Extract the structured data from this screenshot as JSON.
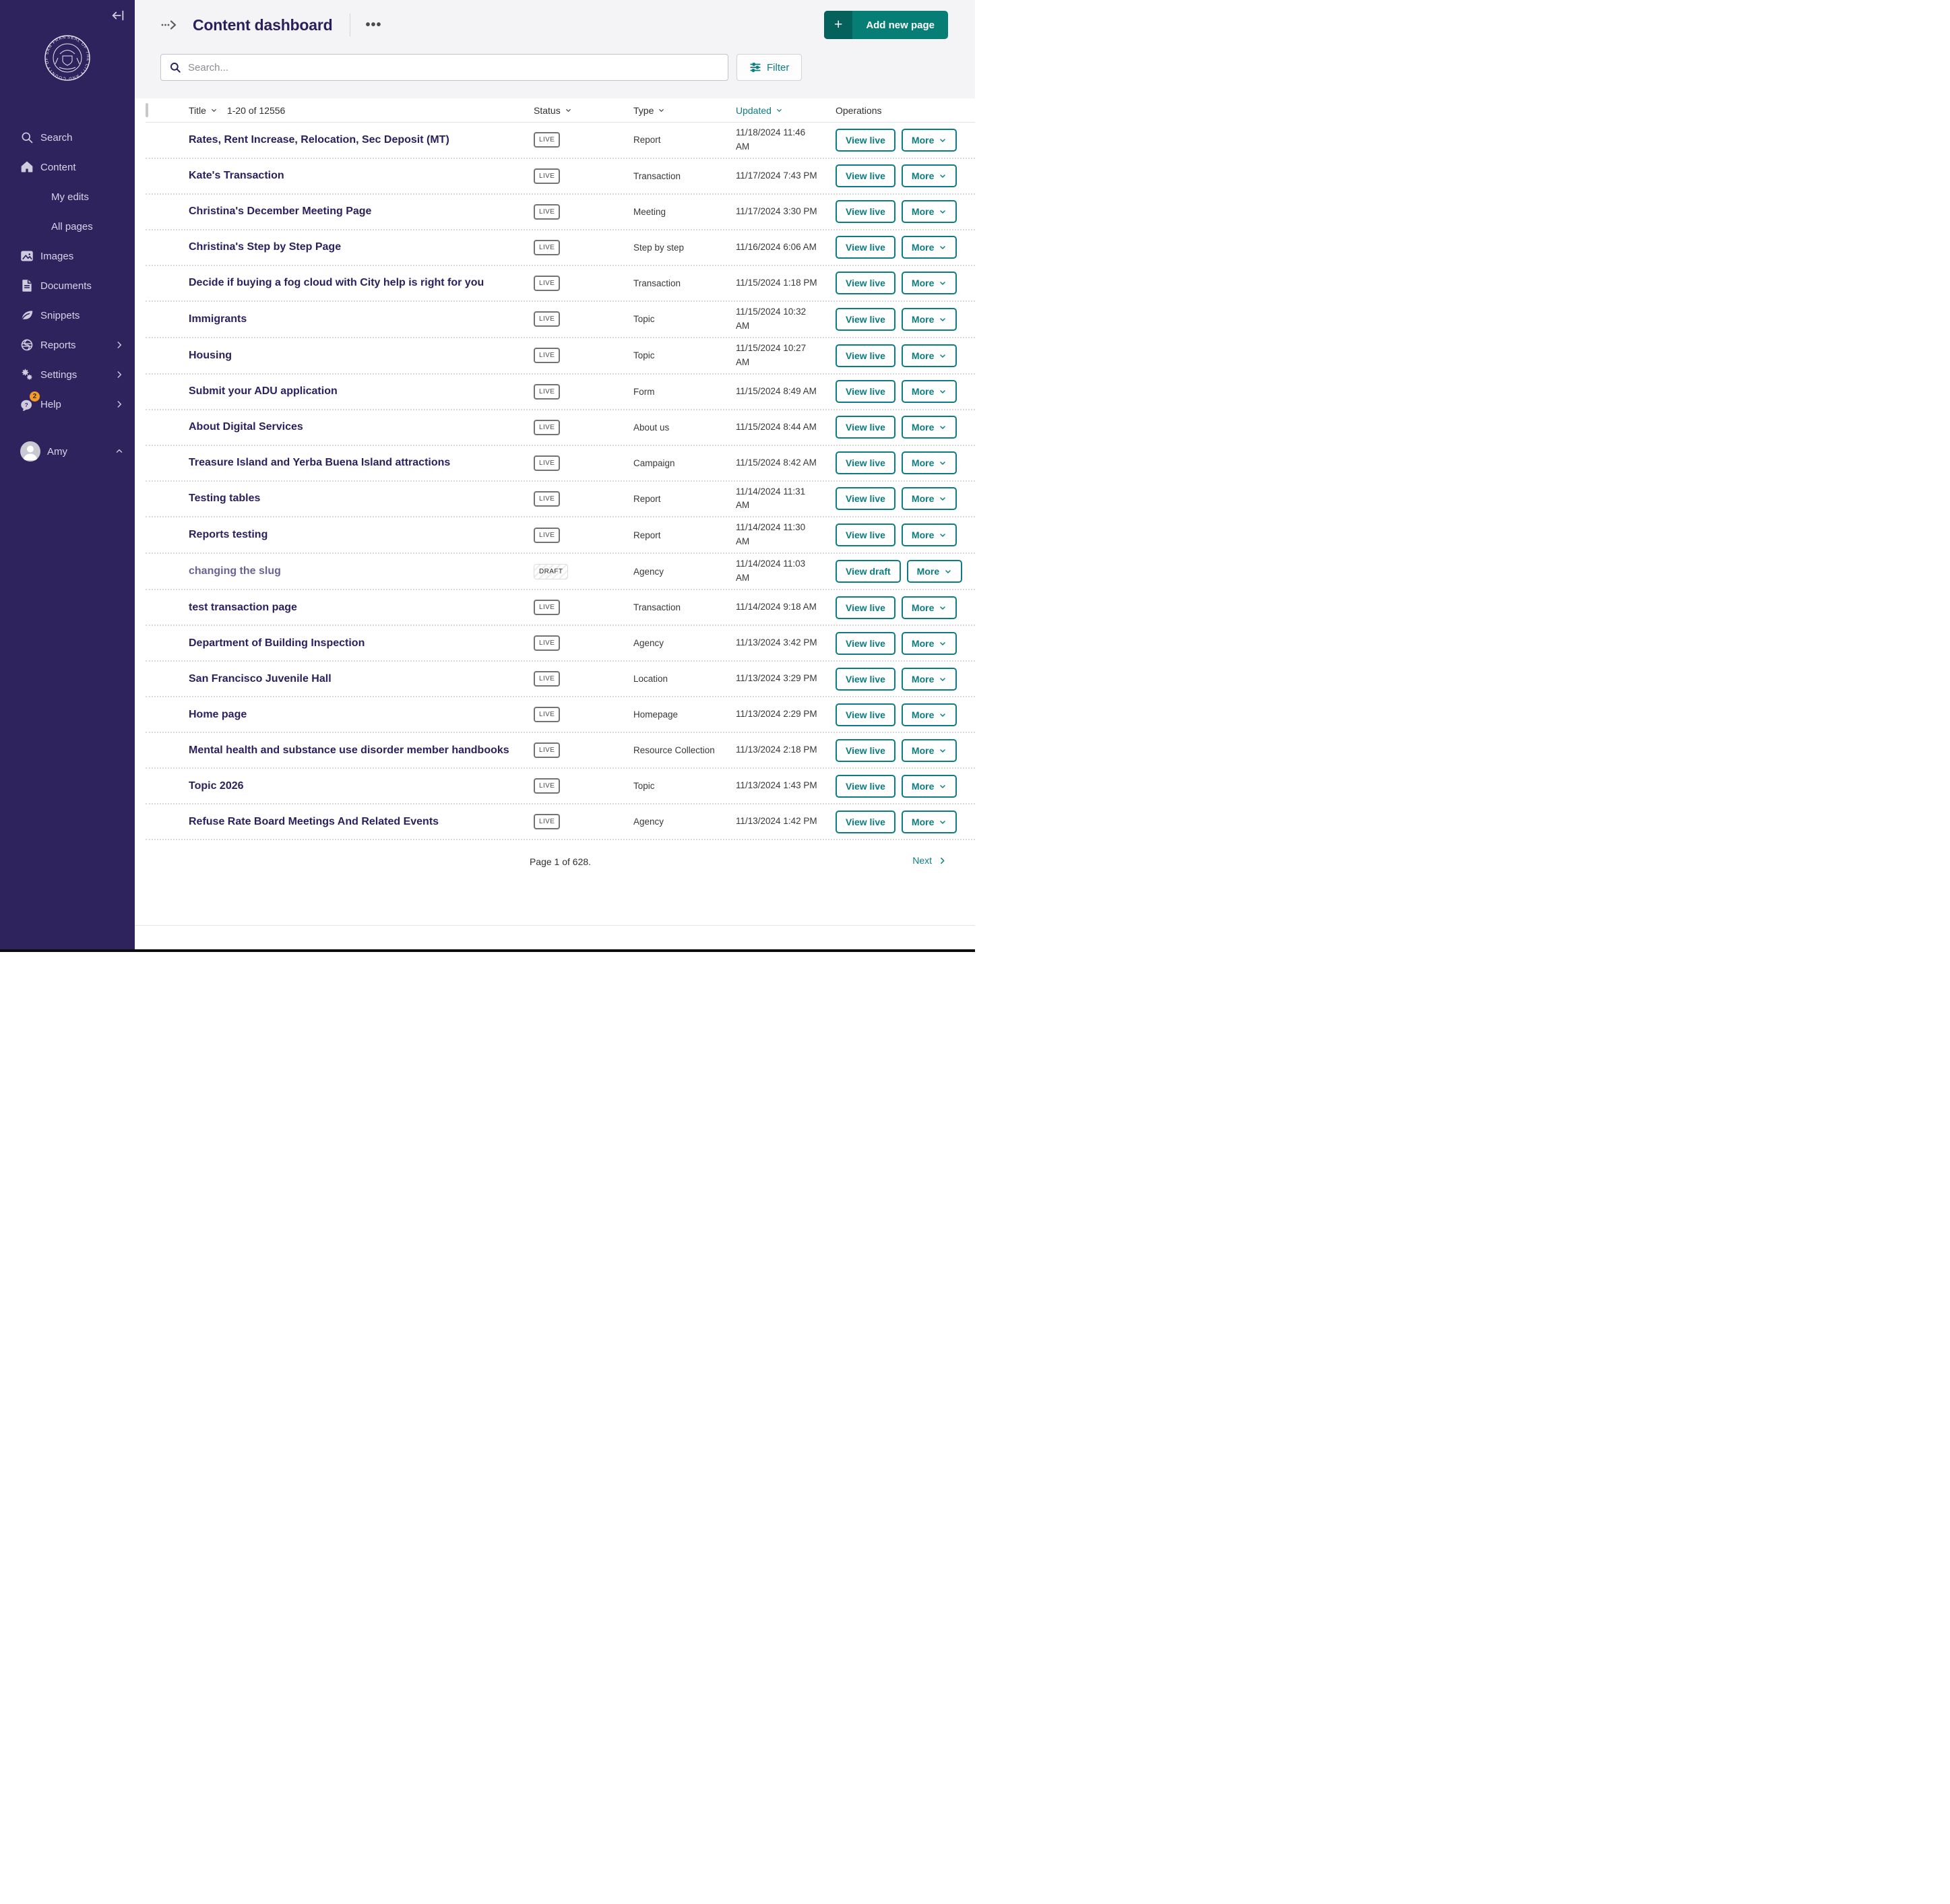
{
  "colors": {
    "sidebar_bg": "#2f235e",
    "accent_teal": "#0c7d85",
    "button_teal": "#067d75",
    "title_purple": "#2b1f5c",
    "draft_title_purple": "#6c6296",
    "help_badge_orange": "#f59c26"
  },
  "sidebar": {
    "collapse_icon": "collapse-sidebar-icon",
    "logo": "seal-of-san-francisco",
    "items": [
      {
        "label": "Search",
        "icon": "search-icon"
      },
      {
        "label": "Content",
        "icon": "home-icon"
      },
      {
        "label": "My edits",
        "sub": true
      },
      {
        "label": "All pages",
        "sub": true
      },
      {
        "label": "Images",
        "icon": "image-icon"
      },
      {
        "label": "Documents",
        "icon": "document-icon"
      },
      {
        "label": "Snippets",
        "icon": "leaf-icon"
      },
      {
        "label": "Reports",
        "icon": "globe-icon",
        "chevron": "right"
      },
      {
        "label": "Settings",
        "icon": "gears-icon",
        "chevron": "right"
      },
      {
        "label": "Help",
        "icon": "help-icon",
        "chevron": "right",
        "badge": "2"
      }
    ],
    "user": {
      "name": "Amy",
      "chevron": "up"
    }
  },
  "header": {
    "title": "Content dashboard",
    "add_button_label": "Add new page",
    "add_button_plus": "+"
  },
  "search": {
    "placeholder": "Search...",
    "filter_label": "Filter"
  },
  "table": {
    "header": {
      "title": "Title",
      "count": "1-20 of 12556",
      "status": "Status",
      "type": "Type",
      "updated": "Updated",
      "operations": "Operations",
      "sorted_by": "Updated"
    },
    "more_label": "More",
    "rows": [
      {
        "title": "Rates, Rent Increase, Relocation, Sec Deposit (MT)",
        "status": "LIVE",
        "type": "Report",
        "updated": "11/18/2024 11:46 AM",
        "action": "View live"
      },
      {
        "title": "Kate's Transaction",
        "status": "LIVE",
        "type": "Transaction",
        "updated": "11/17/2024 7:43 PM",
        "action": "View live"
      },
      {
        "title": "Christina's December Meeting Page",
        "status": "LIVE",
        "type": "Meeting",
        "updated": "11/17/2024 3:30 PM",
        "action": "View live"
      },
      {
        "title": "Christina's Step by Step Page",
        "status": "LIVE",
        "type": "Step by step",
        "updated": "11/16/2024 6:06 AM",
        "action": "View live"
      },
      {
        "title": "Decide if buying a fog cloud with City help is right for you",
        "status": "LIVE",
        "type": "Transaction",
        "updated": "11/15/2024 1:18 PM",
        "action": "View live"
      },
      {
        "title": "Immigrants",
        "status": "LIVE",
        "type": "Topic",
        "updated": "11/15/2024 10:32 AM",
        "action": "View live"
      },
      {
        "title": "Housing",
        "status": "LIVE",
        "type": "Topic",
        "updated": "11/15/2024 10:27 AM",
        "action": "View live"
      },
      {
        "title": "Submit your ADU application",
        "status": "LIVE",
        "type": "Form",
        "updated": "11/15/2024 8:49 AM",
        "action": "View live"
      },
      {
        "title": "About Digital Services",
        "status": "LIVE",
        "type": "About us",
        "updated": "11/15/2024 8:44 AM",
        "action": "View live"
      },
      {
        "title": "Treasure Island and Yerba Buena Island attractions",
        "status": "LIVE",
        "type": "Campaign",
        "updated": "11/15/2024 8:42 AM",
        "action": "View live"
      },
      {
        "title": "Testing tables",
        "status": "LIVE",
        "type": "Report",
        "updated": "11/14/2024 11:31 AM",
        "action": "View live"
      },
      {
        "title": "Reports testing",
        "status": "LIVE",
        "type": "Report",
        "updated": "11/14/2024 11:30 AM",
        "action": "View live"
      },
      {
        "title": "changing the slug",
        "status": "DRAFT",
        "type": "Agency",
        "updated": "11/14/2024 11:03 AM",
        "action": "View draft"
      },
      {
        "title": "test transaction page",
        "status": "LIVE",
        "type": "Transaction",
        "updated": "11/14/2024 9:18 AM",
        "action": "View live"
      },
      {
        "title": "Department of Building Inspection",
        "status": "LIVE",
        "type": "Agency",
        "updated": "11/13/2024 3:42 PM",
        "action": "View live"
      },
      {
        "title": "San Francisco Juvenile Hall",
        "status": "LIVE",
        "type": "Location",
        "updated": "11/13/2024 3:29 PM",
        "action": "View live"
      },
      {
        "title": "Home page",
        "status": "LIVE",
        "type": "Homepage",
        "updated": "11/13/2024 2:29 PM",
        "action": "View live"
      },
      {
        "title": "Mental health and substance use disorder member handbooks",
        "status": "LIVE",
        "type": "Resource Collection",
        "updated": "11/13/2024 2:18 PM",
        "action": "View live"
      },
      {
        "title": "Topic 2026",
        "status": "LIVE",
        "type": "Topic",
        "updated": "11/13/2024 1:43 PM",
        "action": "View live"
      },
      {
        "title": "Refuse Rate Board Meetings And Related Events",
        "status": "LIVE",
        "type": "Agency",
        "updated": "11/13/2024 1:42 PM",
        "action": "View live"
      }
    ]
  },
  "footer": {
    "page_info": "Page 1 of 628.",
    "next_label": "Next"
  }
}
